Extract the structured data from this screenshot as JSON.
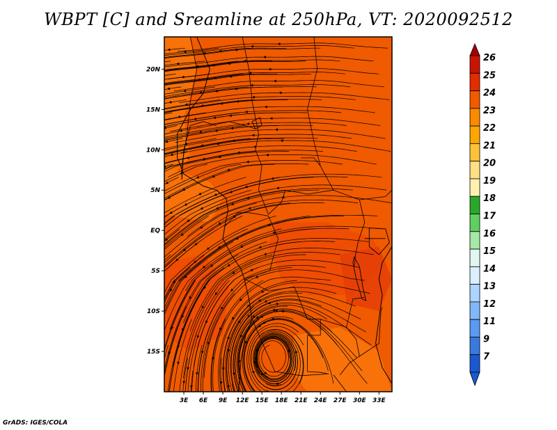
{
  "title": "WBPT [C] and Sreamline at 250hPa, VT: 2020092512",
  "credit": "GrADS: IGES/COLA",
  "chart_data": {
    "type": "heatmap",
    "variable": "WBPT [C]",
    "level": "250hPa",
    "valid_time": "2020092512",
    "overlay": "streamlines",
    "lon_range": [
      0,
      35
    ],
    "lat_range": [
      -20,
      24
    ],
    "lat_ticks": [
      {
        "label": "20N",
        "value": 20
      },
      {
        "label": "15N",
        "value": 15
      },
      {
        "label": "10N",
        "value": 10
      },
      {
        "label": "5N",
        "value": 5
      },
      {
        "label": "EQ",
        "value": 0
      },
      {
        "label": "5S",
        "value": -5
      },
      {
        "label": "10S",
        "value": -10
      },
      {
        "label": "15S",
        "value": -15
      }
    ],
    "lon_ticks": [
      {
        "label": "3E",
        "value": 3
      },
      {
        "label": "6E",
        "value": 6
      },
      {
        "label": "9E",
        "value": 9
      },
      {
        "label": "12E",
        "value": 12
      },
      {
        "label": "15E",
        "value": 15
      },
      {
        "label": "18E",
        "value": 18
      },
      {
        "label": "21E",
        "value": 21
      },
      {
        "label": "24E",
        "value": 24
      },
      {
        "label": "27E",
        "value": 27
      },
      {
        "label": "30E",
        "value": 30
      },
      {
        "label": "33E",
        "value": 33
      }
    ],
    "colorbar": {
      "labels": [
        "26",
        "25",
        "24",
        "23",
        "22",
        "21",
        "20",
        "19",
        "18",
        "17",
        "16",
        "15",
        "14",
        "13",
        "12",
        "11",
        "9",
        "7"
      ],
      "colors": [
        "#a50000",
        "#c81400",
        "#e42c00",
        "#f25a00",
        "#fb8a00",
        "#ffa600",
        "#ffc33a",
        "#ffe082",
        "#fff2b0",
        "#2aa82a",
        "#5fcf5f",
        "#a6e8a6",
        "#e2f7f2",
        "#dcefff",
        "#aed4ff",
        "#80b8fa",
        "#5a9af0",
        "#3a7ae0",
        "#1a5ad0"
      ]
    },
    "field_colors": {
      "main": "#f05a00",
      "warm": "#ee4a04",
      "warmer": "#e43c08",
      "cool": "#fb7a0c"
    },
    "features": [
      "cyclonic vortex near 16S 17E",
      "easterly flow north of 10N"
    ]
  }
}
